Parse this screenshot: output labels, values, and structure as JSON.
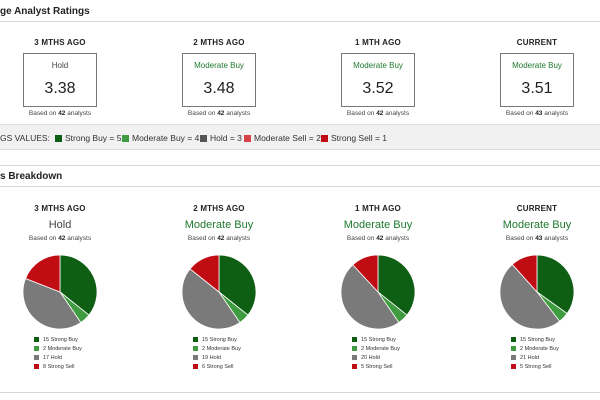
{
  "header": {
    "title": "ge Analyst Ratings",
    "breakdown_title": "s Breakdown"
  },
  "colors": {
    "strong_buy": "#0e5e14",
    "moderate_buy": "#3f9b3f",
    "hold": "#7a7a7a",
    "moderate_sell": "#d6414a",
    "strong_sell": "#c00d14"
  },
  "summary": [
    {
      "label": "3 MTHS AGO",
      "rating": "Hold",
      "value": "3.38",
      "based_prefix": "Based on",
      "analysts": "42",
      "based_suffix": "analysts",
      "tone": "gray"
    },
    {
      "label": "2 MTHS AGO",
      "rating": "Moderate Buy",
      "value": "3.48",
      "based_prefix": "Based on",
      "analysts": "42",
      "based_suffix": "analysts",
      "tone": "green"
    },
    {
      "label": "1 MTH AGO",
      "rating": "Moderate Buy",
      "value": "3.52",
      "based_prefix": "Based on",
      "analysts": "42",
      "based_suffix": "analysts",
      "tone": "green"
    },
    {
      "label": "CURRENT",
      "rating": "Moderate Buy",
      "value": "3.51",
      "based_prefix": "Based on",
      "analysts": "43",
      "based_suffix": "analysts",
      "tone": "green"
    }
  ],
  "legend": {
    "label": "GS VALUES:",
    "items": [
      {
        "text": "Strong Buy = 5",
        "color": "#0e5e14"
      },
      {
        "text": "Moderate Buy = 4",
        "color": "#3f9b3f"
      },
      {
        "text": "Hold = 3",
        "color": "#555555"
      },
      {
        "text": "Moderate Sell = 2",
        "color": "#d6414a"
      },
      {
        "text": "Strong Sell = 1",
        "color": "#c00d14"
      }
    ]
  },
  "breakdown": [
    {
      "label": "3 MTHS AGO",
      "rating": "Hold",
      "tone": "gray",
      "based_prefix": "Based on",
      "analysts": "42",
      "based_suffix": "analysts"
    },
    {
      "label": "2 MTHS AGO",
      "rating": "Moderate Buy",
      "tone": "green",
      "based_prefix": "Based on",
      "analysts": "42",
      "based_suffix": "analysts"
    },
    {
      "label": "1 MTH AGO",
      "rating": "Moderate Buy",
      "tone": "green",
      "based_prefix": "Based on",
      "analysts": "42",
      "based_suffix": "analysts"
    },
    {
      "label": "CURRENT",
      "rating": "Moderate Buy",
      "tone": "green",
      "based_prefix": "Based on",
      "analysts": "43",
      "based_suffix": "analysts"
    }
  ],
  "chart_data": [
    {
      "type": "pie",
      "title": "3 MTHS AGO",
      "slices": [
        {
          "label": "15 Strong Buy",
          "value": 15,
          "color": "#0e5e14"
        },
        {
          "label": "2 Moderate Buy",
          "value": 2,
          "color": "#3f9b3f"
        },
        {
          "label": "17 Hold",
          "value": 17,
          "color": "#7a7a7a"
        },
        {
          "label": "8 Strong Sell",
          "value": 8,
          "color": "#c00d14"
        }
      ]
    },
    {
      "type": "pie",
      "title": "2 MTHS AGO",
      "slices": [
        {
          "label": "15 Strong Buy",
          "value": 15,
          "color": "#0e5e14"
        },
        {
          "label": "2 Moderate Buy",
          "value": 2,
          "color": "#3f9b3f"
        },
        {
          "label": "19 Hold",
          "value": 19,
          "color": "#7a7a7a"
        },
        {
          "label": "6 Strong Sell",
          "value": 6,
          "color": "#c00d14"
        }
      ]
    },
    {
      "type": "pie",
      "title": "1 MTH AGO",
      "slices": [
        {
          "label": "15 Strong Buy",
          "value": 15,
          "color": "#0e5e14"
        },
        {
          "label": "2 Moderate Buy",
          "value": 2,
          "color": "#3f9b3f"
        },
        {
          "label": "20 Hold",
          "value": 20,
          "color": "#7a7a7a"
        },
        {
          "label": "5 Strong Sell",
          "value": 5,
          "color": "#c00d14"
        }
      ]
    },
    {
      "type": "pie",
      "title": "CURRENT",
      "slices": [
        {
          "label": "15 Strong Buy",
          "value": 15,
          "color": "#0e5e14"
        },
        {
          "label": "2 Moderate Buy",
          "value": 2,
          "color": "#3f9b3f"
        },
        {
          "label": "21 Hold",
          "value": 21,
          "color": "#7a7a7a"
        },
        {
          "label": "5 Strong Sell",
          "value": 5,
          "color": "#c00d14"
        }
      ]
    }
  ]
}
